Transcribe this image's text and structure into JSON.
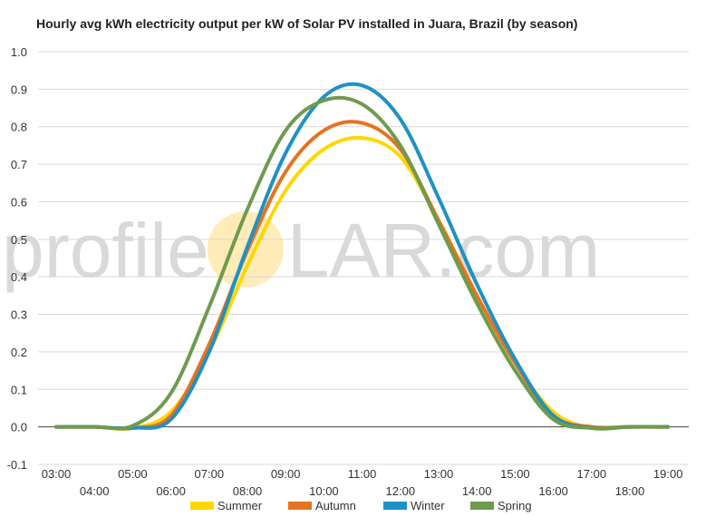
{
  "chart_data": {
    "type": "line",
    "title": "Hourly avg kWh electricity output per kW of Solar PV installed in Juara, Brazil (by season)",
    "xlabel": "",
    "ylabel": "",
    "ylim": [
      -0.1,
      1.0
    ],
    "y_ticks": [
      "1.0",
      "0.9",
      "0.8",
      "0.7",
      "0.6",
      "0.5",
      "0.4",
      "0.3",
      "0.2",
      "0.1",
      "0.0",
      "-0.1"
    ],
    "x": [
      "03:00",
      "04:00",
      "05:00",
      "06:00",
      "07:00",
      "08:00",
      "09:00",
      "10:00",
      "11:00",
      "12:00",
      "13:00",
      "14:00",
      "15:00",
      "16:00",
      "17:00",
      "18:00",
      "19:00"
    ],
    "grid": true,
    "legend_position": "bottom",
    "watermark": {
      "before": "profile",
      "after": "LAR.com"
    },
    "series": [
      {
        "name": "Summer",
        "color": "#FFD700",
        "values": [
          0.0,
          0.0,
          -0.003,
          0.04,
          0.2,
          0.43,
          0.63,
          0.74,
          0.77,
          0.72,
          0.55,
          0.35,
          0.17,
          0.04,
          -0.003,
          0.0,
          0.0
        ]
      },
      {
        "name": "Autumn",
        "color": "#E67320",
        "values": [
          0.0,
          0.0,
          -0.003,
          0.03,
          0.22,
          0.47,
          0.68,
          0.79,
          0.81,
          0.74,
          0.55,
          0.35,
          0.17,
          0.03,
          0.0,
          0.0,
          0.0
        ]
      },
      {
        "name": "Winter",
        "color": "#1F91C4",
        "values": [
          0.0,
          0.0,
          -0.003,
          0.02,
          0.2,
          0.48,
          0.73,
          0.88,
          0.91,
          0.82,
          0.61,
          0.38,
          0.18,
          0.03,
          -0.003,
          0.0,
          0.0
        ]
      },
      {
        "name": "Spring",
        "color": "#6E9B4E",
        "values": [
          0.0,
          0.0,
          0.003,
          0.09,
          0.32,
          0.58,
          0.79,
          0.87,
          0.86,
          0.75,
          0.54,
          0.33,
          0.15,
          0.02,
          -0.003,
          0.0,
          0.0
        ]
      }
    ]
  }
}
